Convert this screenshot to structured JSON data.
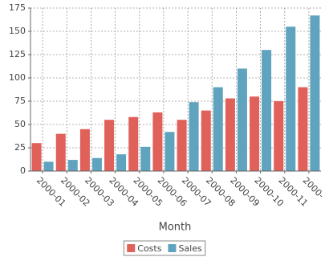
{
  "chart_data": {
    "type": "bar",
    "x_label": "Month",
    "categories": [
      "2000-01",
      "2000-02",
      "2000-03",
      "2000-04",
      "2000-05",
      "2000-06",
      "2000-07",
      "2000-08",
      "2000-09",
      "2000-10",
      "2000-11",
      "2000-12"
    ],
    "series": [
      {
        "name": "Costs",
        "color": "#e0605a",
        "values": [
          30,
          40,
          45,
          55,
          58,
          63,
          55,
          65,
          78,
          80,
          75,
          90
        ]
      },
      {
        "name": "Sales",
        "color": "#5fa3bf",
        "values": [
          10,
          12,
          14,
          18,
          26,
          42,
          74,
          90,
          110,
          130,
          155,
          167
        ]
      }
    ],
    "ylim": [
      0,
      175
    ],
    "yticks": [
      0,
      25,
      50,
      75,
      100,
      125,
      150,
      175
    ],
    "grid": true,
    "legend": "bottom"
  }
}
